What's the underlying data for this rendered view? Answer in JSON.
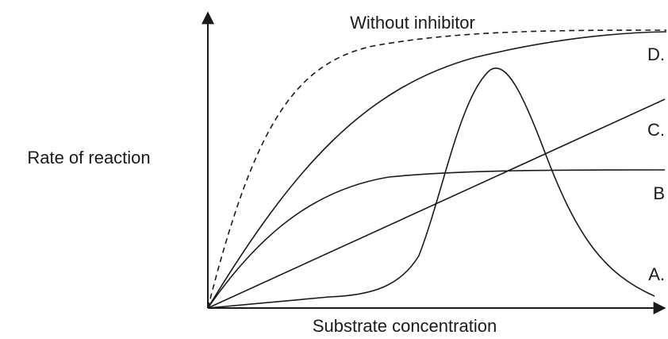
{
  "title": "Without inhibitor",
  "y_axis_label": "Rate of reaction",
  "x_axis_label": "Substrate concentration",
  "curve_labels": [
    "D.",
    "C.",
    "B",
    "A."
  ]
}
